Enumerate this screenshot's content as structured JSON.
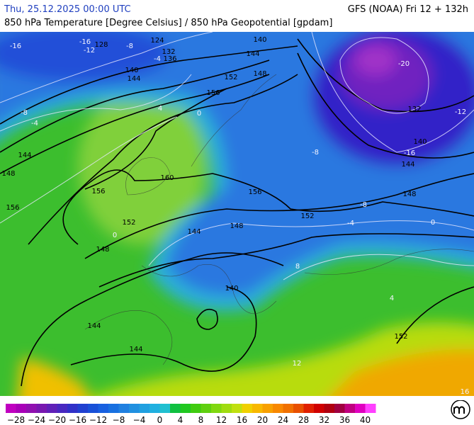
{
  "header": {
    "datetime": "Thu, 25.12.2025 00:00 UTC",
    "model": "GFS (NOAA) Fri 12 + 132h",
    "subtitle": "850 hPa Temperature [Degree Celsius] / 850 hPa Geopotential [gpdam]"
  },
  "map": {
    "labels": [
      "-16",
      "-16",
      "128",
      "-12",
      "-8",
      "124",
      "132",
      "136",
      "-4",
      "140",
      "144",
      "140",
      "144",
      "148",
      "152",
      "156",
      "-20",
      "132",
      "140",
      "-16",
      "-12",
      "-8",
      "144",
      "148",
      "-8",
      "152",
      "156",
      "160",
      "156",
      "152",
      "148",
      "144",
      "148",
      "156",
      "-8",
      "-4",
      "4",
      "0",
      "144",
      "148",
      "140",
      "144",
      "144",
      "152",
      "-4",
      "0",
      "4",
      "8",
      "12",
      "16",
      "0"
    ]
  },
  "legend": {
    "colors": [
      "#c000c0",
      "#a800b8",
      "#9010b0",
      "#7818b0",
      "#6020b8",
      "#4828c0",
      "#3030c8",
      "#2040d0",
      "#1850d8",
      "#1860e0",
      "#1870e0",
      "#2080e0",
      "#2090e0",
      "#20a0e0",
      "#20b0e0",
      "#20c0d0",
      "#10c040",
      "#20c820",
      "#40cc10",
      "#60d010",
      "#80d810",
      "#a0dc10",
      "#c0e010",
      "#f0d000",
      "#f8b800",
      "#f8a000",
      "#f88800",
      "#f07000",
      "#e85000",
      "#e02000",
      "#d00000",
      "#b00010",
      "#a00040",
      "#c00080",
      "#e000c0",
      "#ff40ff"
    ],
    "ticks": [
      {
        "value": -28,
        "label": "−28"
      },
      {
        "value": -24,
        "label": "−24"
      },
      {
        "value": -20,
        "label": "−20"
      },
      {
        "value": -16,
        "label": "−16"
      },
      {
        "value": -12,
        "label": "−12"
      },
      {
        "value": -8,
        "label": "−8"
      },
      {
        "value": -4,
        "label": "−4"
      },
      0,
      4,
      8,
      12,
      16,
      20,
      24,
      28,
      32,
      36,
      40
    ],
    "range": [
      -30,
      42
    ]
  }
}
